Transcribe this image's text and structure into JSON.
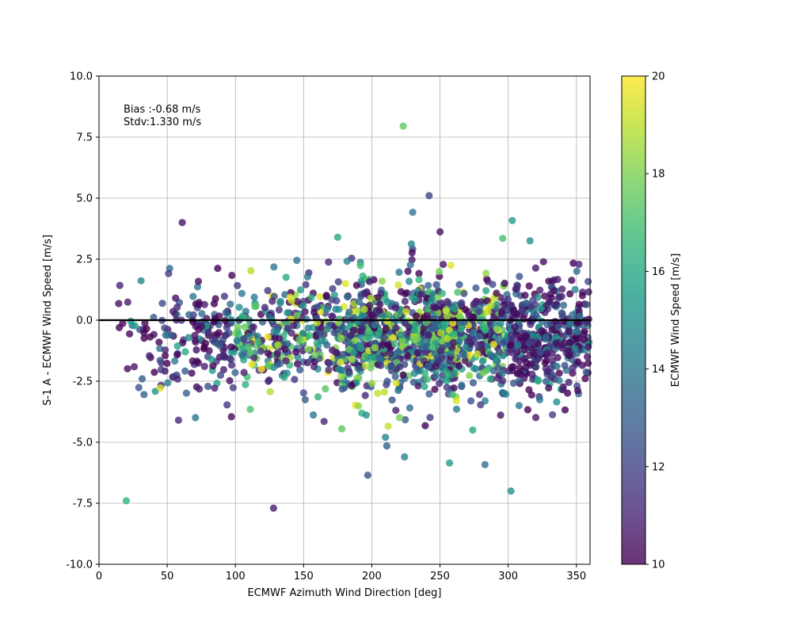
{
  "chart_data": {
    "type": "scatter",
    "xlabel": "ECMWF Azimuth Wind Direction [deg]",
    "ylabel": "S-1 A - ECMWF Wind Speed [m/s]",
    "xlim": [
      0,
      360
    ],
    "ylim": [
      -10,
      10
    ],
    "xticks": [
      0,
      50,
      100,
      150,
      200,
      250,
      300,
      350
    ],
    "yticks": [
      -10.0,
      -7.5,
      -5.0,
      -2.5,
      0.0,
      2.5,
      5.0,
      7.5,
      10.0
    ],
    "grid": true,
    "zero_line": 0,
    "annotations": [
      "Bias :-0.68 m/s",
      "Stdv:1.330 m/s"
    ],
    "colorbar": {
      "label": "ECMWF Wind Speed [m/s]",
      "range": [
        10,
        20
      ],
      "ticks": [
        10,
        12,
        14,
        16,
        18,
        20
      ],
      "colormap": "viridis"
    },
    "points_note_outliers": [
      [
        223,
        7.95,
        17.5
      ],
      [
        242,
        5.1,
        12.0
      ],
      [
        230,
        4.42,
        14.0
      ],
      [
        61,
        4.0,
        10.5
      ],
      [
        250,
        3.62,
        10.5
      ],
      [
        175,
        3.4,
        16.0
      ],
      [
        229,
        3.12,
        14.5
      ],
      [
        296,
        3.35,
        17.0
      ],
      [
        316,
        3.25,
        15.0
      ],
      [
        303,
        4.08,
        15.5
      ],
      [
        20,
        -7.4,
        16.5
      ],
      [
        128,
        -7.7,
        10.8
      ],
      [
        302,
        -7.0,
        15.0
      ],
      [
        197,
        -6.35,
        12.5
      ],
      [
        224,
        -5.6,
        14.5
      ],
      [
        257,
        -5.85,
        15.5
      ],
      [
        283,
        -5.92,
        13.5
      ],
      [
        211,
        -5.15,
        13.0
      ],
      [
        210,
        -4.8,
        14.5
      ],
      [
        274,
        -4.5,
        16.0
      ],
      [
        165,
        -4.15,
        11.0
      ],
      [
        178,
        -4.45,
        17.5
      ],
      [
        45,
        -2.78,
        19.5
      ],
      [
        160,
        -0.1,
        19.0
      ],
      [
        258,
        2.25,
        19.5
      ],
      [
        262,
        -3.3,
        19.5
      ],
      [
        33,
        -3.05,
        13.0
      ],
      [
        308,
        -3.5,
        14.0
      ],
      [
        340,
        -2.85,
        10.5
      ],
      [
        322,
        -2.45,
        16.0
      ]
    ],
    "dense_band": {
      "x_range": [
        0,
        360
      ],
      "y_mean": -0.68,
      "y_std": 1.33,
      "point_count": 1900,
      "speed_range": [
        10,
        20
      ]
    }
  }
}
